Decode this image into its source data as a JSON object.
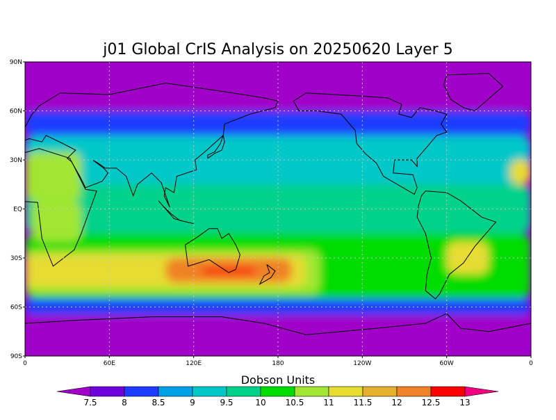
{
  "title": "j01 Global CrIS Analysis on 20250620 Layer 5",
  "map": {
    "projection": "cylindrical equidistant",
    "lon_range": [
      0,
      360
    ],
    "lat_range": [
      -90,
      90
    ],
    "grid": "dotted",
    "lat_ticks": [
      {
        "value": 90,
        "label": "90N"
      },
      {
        "value": 60,
        "label": "60N"
      },
      {
        "value": 30,
        "label": "30N"
      },
      {
        "value": 0,
        "label": "EQ"
      },
      {
        "value": -30,
        "label": "30S"
      },
      {
        "value": -60,
        "label": "60S"
      },
      {
        "value": -90,
        "label": "90S"
      }
    ],
    "lon_ticks": [
      {
        "value": 0,
        "label": "0"
      },
      {
        "value": 60,
        "label": "60E"
      },
      {
        "value": 120,
        "label": "120E"
      },
      {
        "value": 180,
        "label": "180"
      },
      {
        "value": 240,
        "label": "120W"
      },
      {
        "value": 300,
        "label": "60W"
      },
      {
        "value": 360,
        "label": "0"
      }
    ]
  },
  "colorbar": {
    "title": "Dobson Units",
    "labels": [
      "7.5",
      "8",
      "8.5",
      "9",
      "9.5",
      "10",
      "10.5",
      "11",
      "11.5",
      "12",
      "12.5",
      "13"
    ],
    "colors": [
      "#a000c8",
      "#6e00dc",
      "#1e3cff",
      "#00a0e6",
      "#00c8c8",
      "#00d28c",
      "#00dc00",
      "#a0e632",
      "#e6dc32",
      "#e6af2d",
      "#f08228",
      "#fa0000",
      "#f00082"
    ]
  },
  "chart_data": {
    "type": "heatmap",
    "variable": "Dobson Units",
    "lon_range": [
      0,
      360
    ],
    "lat_range": [
      -90,
      90
    ],
    "value_range": [
      7.5,
      13
    ],
    "levels": [
      7.5,
      8,
      8.5,
      9,
      9.5,
      10,
      10.5,
      11,
      11.5,
      12,
      12.5,
      13
    ],
    "features": [
      {
        "lat_min": 60,
        "lat_max": 90,
        "lon_min": 0,
        "lon_max": 360,
        "value": 7.3
      },
      {
        "lat_min": -90,
        "lat_max": -65,
        "lon_min": 0,
        "lon_max": 360,
        "value": 7.3
      },
      {
        "lat_min": 45,
        "lat_max": 60,
        "lon_min": 0,
        "lon_max": 360,
        "value": 8.2
      },
      {
        "lat_min": -65,
        "lat_max": -55,
        "lon_min": 0,
        "lon_max": 360,
        "value": 8.2
      },
      {
        "lat_min": 15,
        "lat_max": 45,
        "lon_min": 0,
        "lon_max": 360,
        "value": 9.2
      },
      {
        "lat_min": -15,
        "lat_max": 15,
        "lon_min": 0,
        "lon_max": 360,
        "value": 9.6
      },
      {
        "lat_min": -55,
        "lat_max": -15,
        "lon_min": 0,
        "lon_max": 360,
        "value": 10.0
      },
      {
        "lat_min": -52,
        "lat_max": -25,
        "lon_min": 0,
        "lon_max": 210,
        "value": 10.8
      },
      {
        "lat_min": -48,
        "lat_max": -28,
        "lon_min": 0,
        "lon_max": 200,
        "value": 11.3
      },
      {
        "lat_min": -45,
        "lat_max": -30,
        "lon_min": 100,
        "lon_max": 190,
        "value": 12.0
      },
      {
        "lat_min": -43,
        "lat_max": -33,
        "lon_min": 115,
        "lon_max": 175,
        "value": 12.4
      },
      {
        "lat_min": -40,
        "lat_max": -36,
        "lon_min": 125,
        "lon_max": 165,
        "value": 12.8
      },
      {
        "lat_min": 5,
        "lat_max": 35,
        "lon_min": 0,
        "lon_max": 40,
        "value": 10.8
      },
      {
        "lat_min": -20,
        "lat_max": 5,
        "lon_min": 5,
        "lon_max": 40,
        "value": 10.5
      },
      {
        "lat_min": 15,
        "lat_max": 30,
        "lon_min": 345,
        "lon_max": 360,
        "value": 11.2
      },
      {
        "lat_min": -40,
        "lat_max": -20,
        "lon_min": 300,
        "lon_max": 330,
        "value": 11.0
      }
    ]
  }
}
